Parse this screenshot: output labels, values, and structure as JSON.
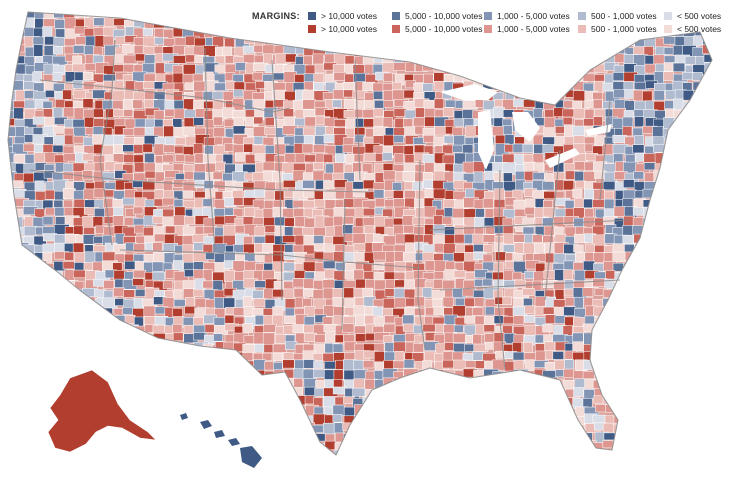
{
  "legend": {
    "title": "MARGINS:",
    "columns": [
      {
        "blue": "> 10,000 votes",
        "red": "> 10,000 votes",
        "blue_color": "#3f5a85",
        "red_color": "#b13e2f"
      },
      {
        "blue": "5,000 - 10,000 votes",
        "red": "5,000 - 10,000 votes",
        "blue_color": "#5c7399",
        "red_color": "#c9655a"
      },
      {
        "blue": "1,000 - 5,000 votes",
        "red": "1,000 - 5,000 votes",
        "blue_color": "#8395b5",
        "red_color": "#dd9690"
      },
      {
        "blue": "500 - 1,000 votes",
        "red": "500 - 1,000 votes",
        "blue_color": "#b0bbd0",
        "red_color": "#ebbcb6"
      },
      {
        "blue": "< 500 votes",
        "red": "< 500 votes",
        "blue_color": "#d8dde7",
        "red_color": "#f3dcd8"
      }
    ]
  },
  "colors": {
    "border": "#ffffff",
    "state_line": "#8c8c8c",
    "base_fill": "#dba29c"
  }
}
